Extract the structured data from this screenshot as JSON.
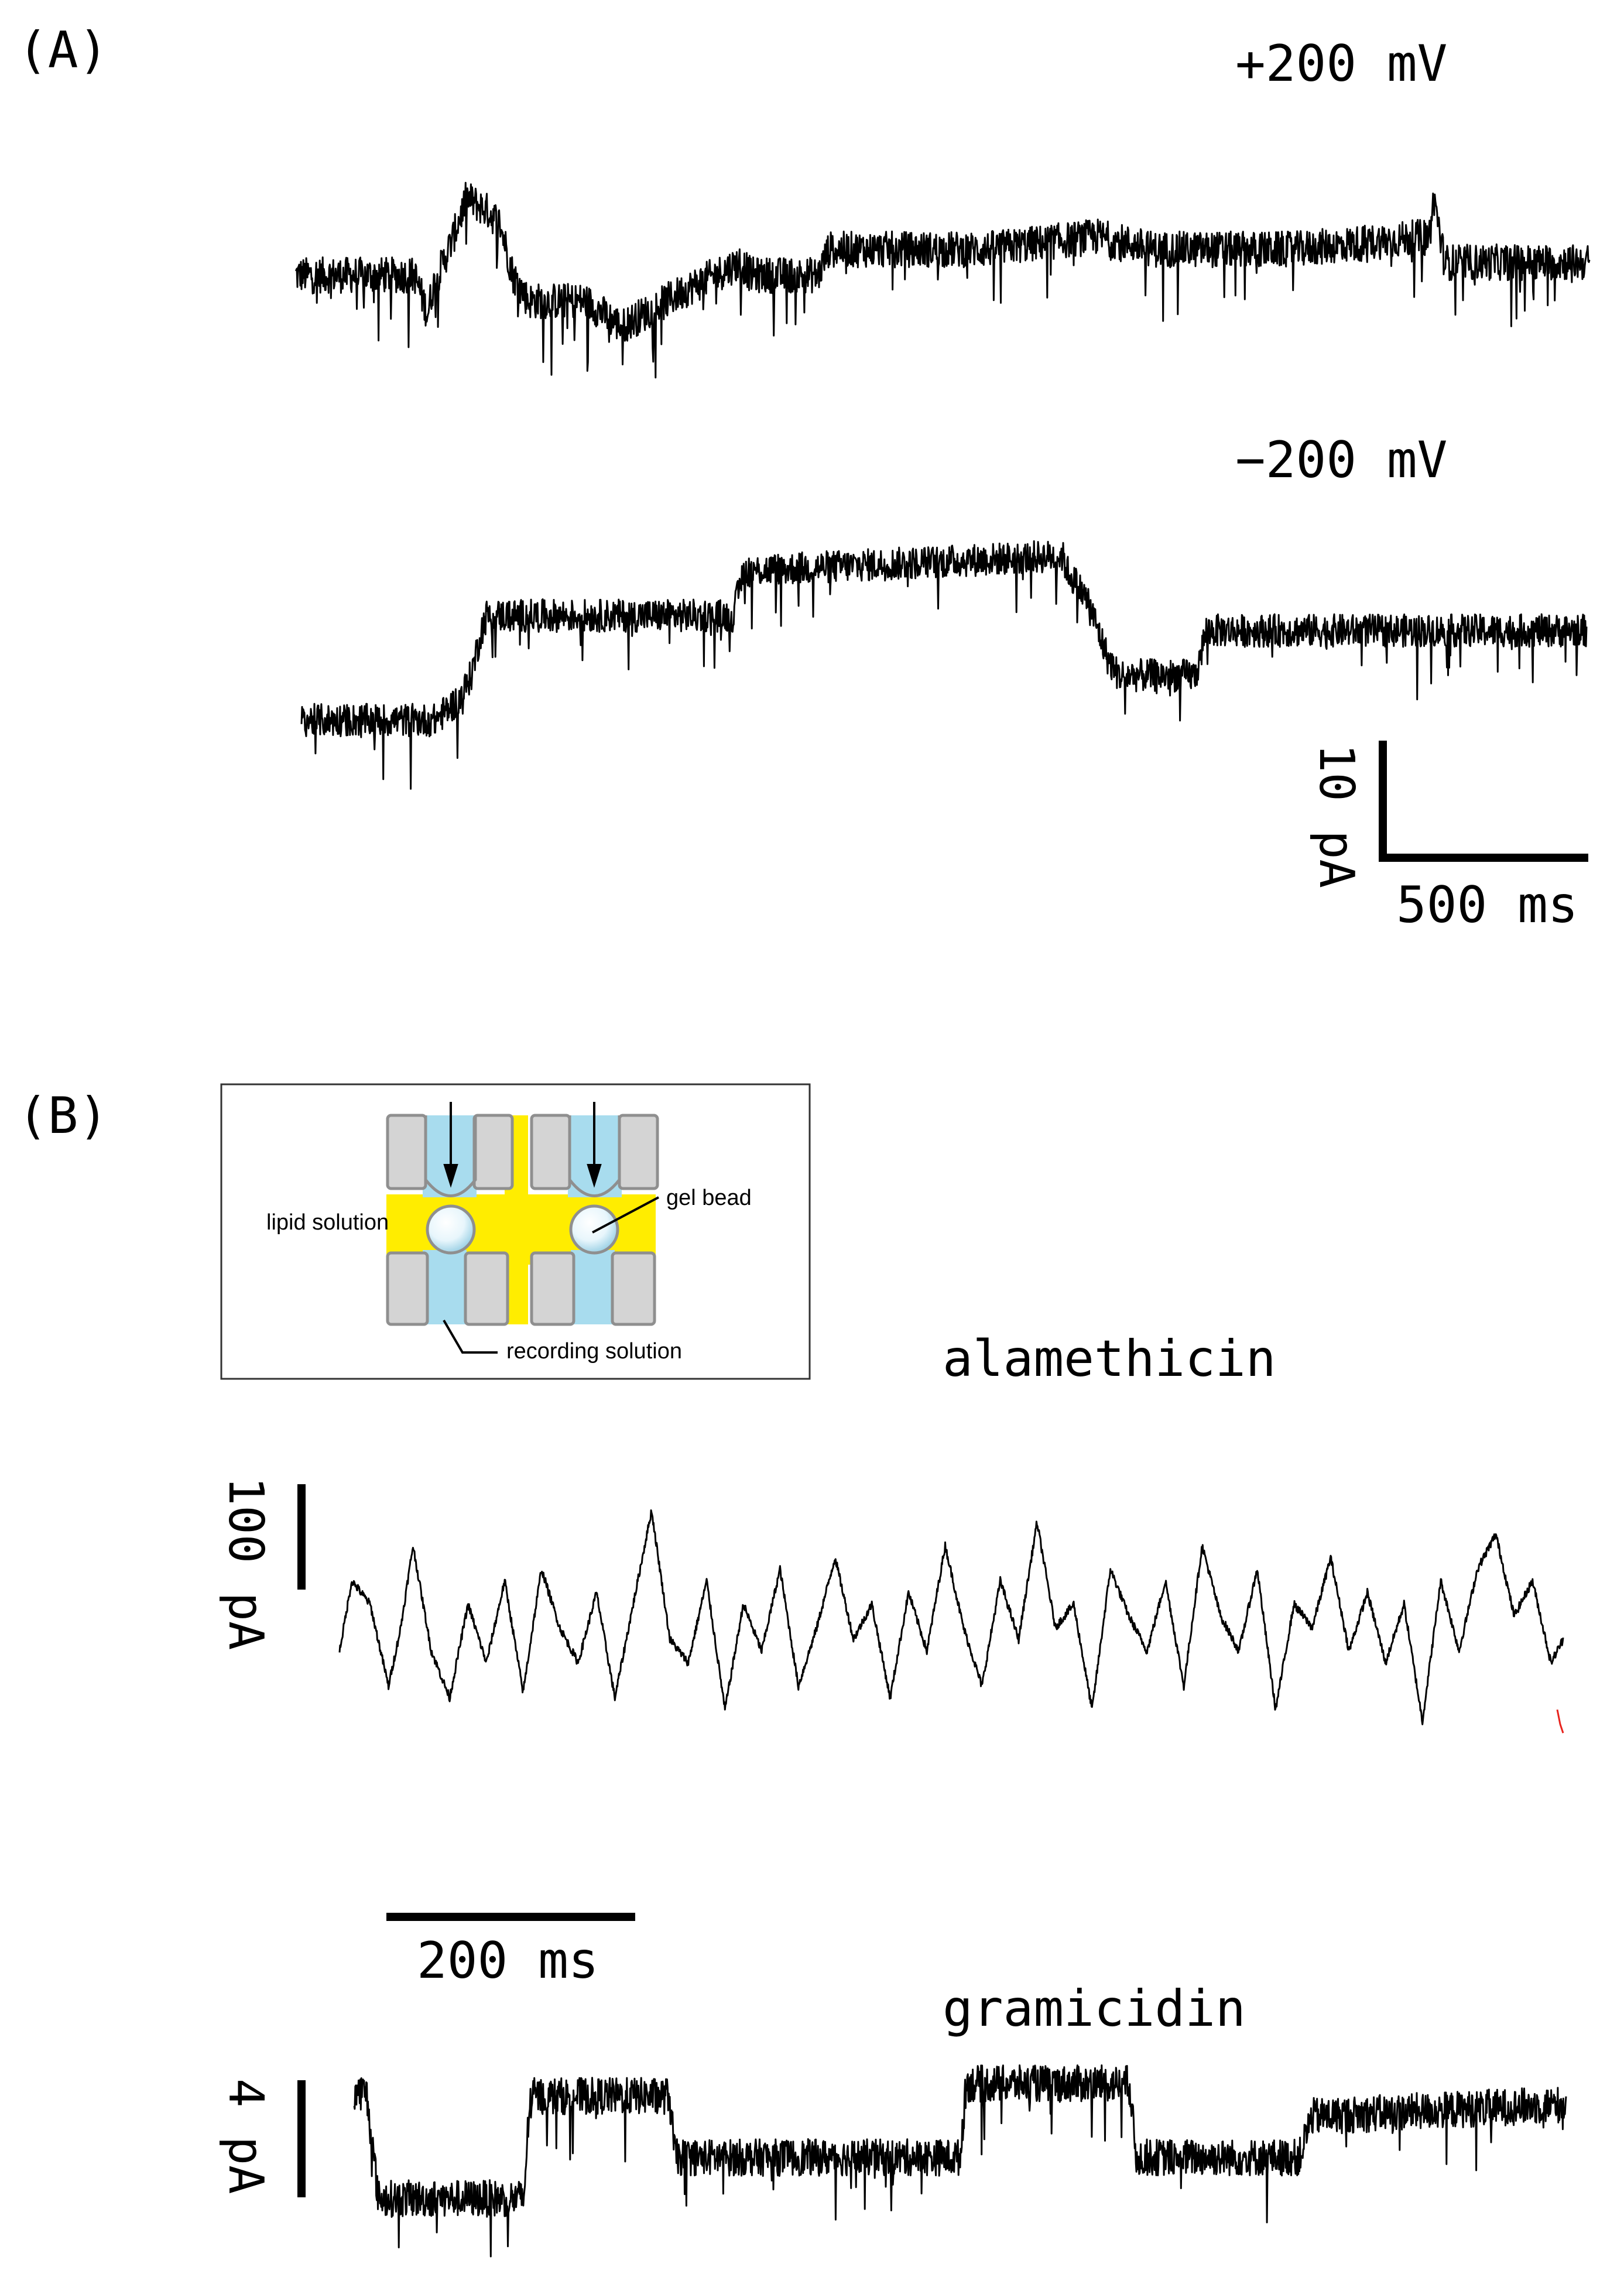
{
  "panels": {
    "a_label": "(A)",
    "b_label": "(B)"
  },
  "colors": {
    "trace": "#000000",
    "lipid": "#ffed00",
    "recording": "#a8dcee",
    "chamber": "#d4d4d4",
    "chamber_stroke": "#8f8f8f",
    "artifact": "#e8231d"
  },
  "scale_bars": {
    "a_current": "10 pA",
    "a_time": "500 ms",
    "b_alamethicin_current": "100 pA",
    "b_time": "200 ms",
    "b_gramicidin_current": "4 pA"
  },
  "inset": {
    "lipid_label": "lipid solution",
    "bead_label": "gel bead",
    "recording_label": "recording solution"
  },
  "chart_data": [
    {
      "type": "line",
      "title": "+200 mV",
      "xlabel": "",
      "ylabel": "",
      "units": {
        "x": "ms",
        "y": "pA"
      },
      "noise": 1.4,
      "spikes": 0.05,
      "x": [
        0,
        230,
        255,
        265,
        285,
        305,
        330,
        370,
        395,
        420,
        450,
        560,
        630,
        760,
        860,
        880,
        1010,
        1030,
        1330,
        1550,
        1660,
        1720,
        1930,
        2190,
        2200,
        2220,
        2250,
        2500
      ],
      "y": [
        0,
        0,
        -3,
        -1,
        1,
        3,
        6,
        5,
        4,
        0,
        -2,
        -2,
        -4,
        -1,
        1,
        0,
        0,
        2,
        2,
        3,
        2,
        2,
        2,
        3,
        6,
        1,
        1,
        1
      ]
    },
    {
      "type": "line",
      "title": "−200 mV",
      "xlabel": "",
      "ylabel": "",
      "units": {
        "x": "ms",
        "y": "pA"
      },
      "noise": 1.1,
      "spikes": 0.03,
      "x": [
        0,
        260,
        310,
        330,
        350,
        360,
        840,
        860,
        1480,
        1490,
        1530,
        1570,
        1590,
        1740,
        1760,
        1950,
        1970,
        2500
      ],
      "y": [
        0,
        0,
        1.5,
        3,
        6,
        7,
        7,
        10,
        11,
        10,
        8,
        4,
        3,
        3,
        6,
        6,
        6,
        6
      ]
    },
    {
      "type": "line",
      "title": "alamethicin",
      "xlabel": "",
      "ylabel": "",
      "units": {
        "x": "ms",
        "y": "pA"
      },
      "noise": 3.5,
      "spikes": 0,
      "x": [
        0,
        10,
        25,
        40,
        50,
        60,
        75,
        90,
        105,
        120,
        135,
        150,
        165,
        180,
        195,
        210,
        225,
        240,
        255,
        270,
        285,
        300,
        315,
        330,
        345,
        360,
        375,
        390,
        405,
        420,
        435,
        450,
        465,
        480,
        495,
        510,
        525,
        540,
        555,
        570,
        585,
        600,
        615,
        630,
        645,
        660,
        675,
        690,
        705,
        720,
        735,
        750,
        765,
        780,
        795,
        810,
        825,
        840,
        855,
        870,
        885,
        900,
        915,
        930,
        945,
        960,
        975,
        990,
        1000
      ],
      "y": [
        20,
        80,
        60,
        -10,
        40,
        110,
        20,
        -20,
        60,
        10,
        80,
        -15,
        90,
        40,
        10,
        70,
        -20,
        60,
        140,
        30,
        10,
        80,
        -30,
        60,
        20,
        90,
        -10,
        40,
        100,
        30,
        60,
        -20,
        70,
        20,
        110,
        40,
        -10,
        80,
        30,
        130,
        40,
        60,
        -30,
        90,
        50,
        20,
        80,
        -10,
        110,
        50,
        20,
        90,
        -30,
        60,
        40,
        100,
        20,
        70,
        10,
        60,
        -40,
        80,
        20,
        90,
        120,
        50,
        80,
        10,
        30
      ]
    },
    {
      "type": "line",
      "title": "gramicidin",
      "xlabel": "",
      "ylabel": "",
      "units": {
        "x": "ms",
        "y": "pA"
      },
      "noise": 0.45,
      "spikes": 0.03,
      "x": [
        0,
        10,
        20,
        140,
        145,
        260,
        265,
        500,
        505,
        640,
        645,
        780,
        790,
        1000
      ],
      "y": [
        2.6,
        2.6,
        0,
        0,
        2.5,
        2.5,
        1.0,
        1.0,
        2.8,
        2.8,
        1.0,
        1.0,
        2.0,
        2.3
      ]
    }
  ]
}
